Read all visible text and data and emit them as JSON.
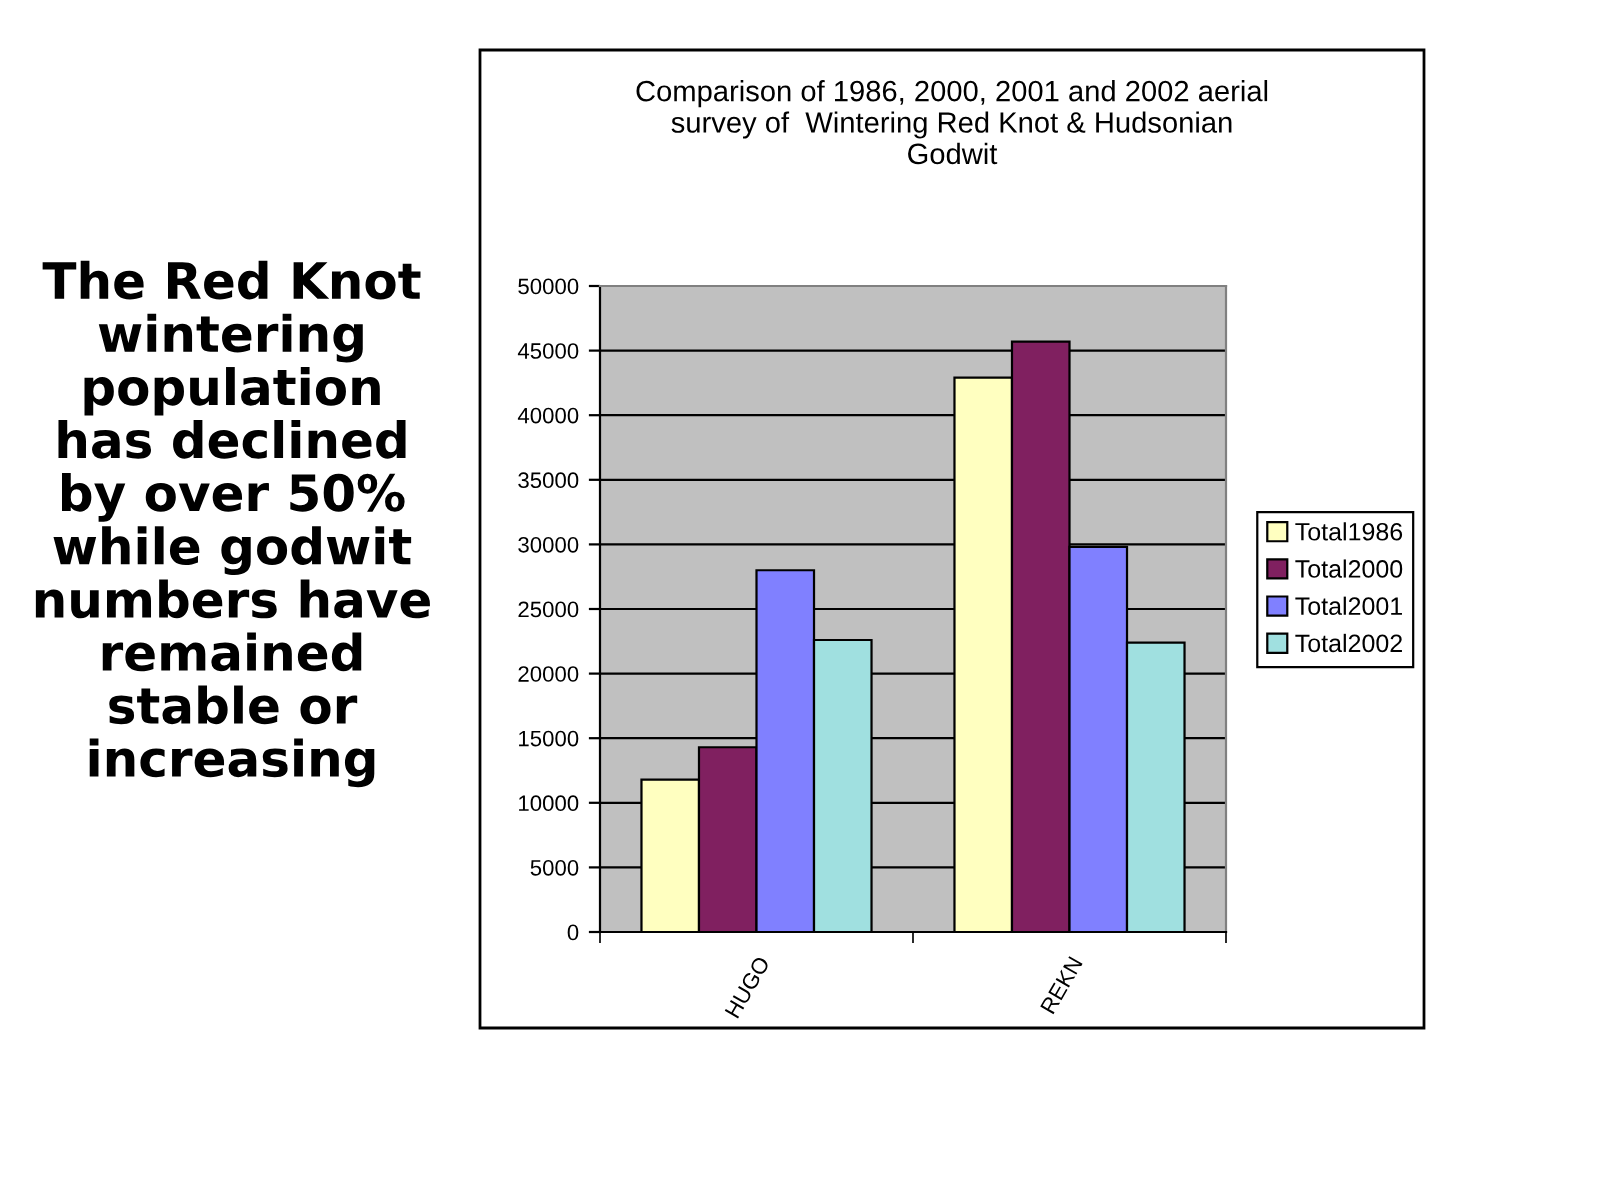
{
  "chart_data": {
    "type": "bar",
    "title": "Comparison of 1986, 2000, 2001 and 2002 aerial\nsurvey of  Wintering Red Knot & Hudsonian\nGodwit",
    "categories": [
      "HUGO",
      "REKN"
    ],
    "series": [
      {
        "name": "Total1986",
        "color": "#ffffc0",
        "values": [
          11800,
          42900
        ]
      },
      {
        "name": "Total2000",
        "color": "#802060",
        "values": [
          14300,
          45700
        ]
      },
      {
        "name": "Total2001",
        "color": "#8080ff",
        "values": [
          28000,
          29800
        ]
      },
      {
        "name": "Total2002",
        "color": "#a0e0e0",
        "values": [
          22600,
          22400
        ]
      }
    ],
    "ylim": [
      0,
      50000
    ],
    "yticks": [
      0,
      5000,
      10000,
      15000,
      20000,
      25000,
      30000,
      35000,
      40000,
      45000,
      50000
    ],
    "grid": "y",
    "legend": "right",
    "annotations": [
      "The Red Knot\nwintering\npopulation\nhas declined\nby over 50%\nwhile godwit\nnumbers have\nremained\nstable or\nincreasing"
    ]
  }
}
